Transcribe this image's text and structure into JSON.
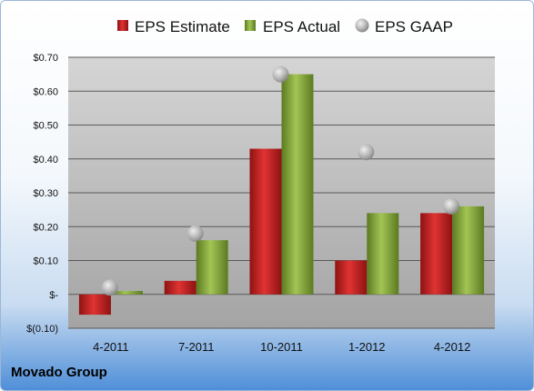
{
  "company": "Movado Group",
  "colors": {
    "estimate": "#d42525",
    "actual": "#8eb23e",
    "gaap": "#a8a8a8"
  },
  "chart_data": {
    "type": "bar",
    "categories": [
      "4-2011",
      "7-2011",
      "10-2011",
      "1-2012",
      "4-2012"
    ],
    "series": [
      {
        "name": "EPS Estimate",
        "kind": "bar",
        "values": [
          -0.06,
          0.04,
          0.43,
          0.1,
          0.24
        ]
      },
      {
        "name": "EPS Actual",
        "kind": "bar",
        "values": [
          0.01,
          0.16,
          0.65,
          0.24,
          0.26
        ]
      },
      {
        "name": "EPS GAAP",
        "kind": "marker",
        "values": [
          0.02,
          0.18,
          0.65,
          0.42,
          0.26
        ]
      }
    ],
    "yticks": [
      -0.1,
      0,
      0.1,
      0.2,
      0.3,
      0.4,
      0.5,
      0.6,
      0.7
    ],
    "ytick_labels": [
      "$(0.10)",
      "$-",
      "$0.10",
      "$0.20",
      "$0.30",
      "$0.40",
      "$0.50",
      "$0.60",
      "$0.70"
    ],
    "ylim": [
      -0.1,
      0.7
    ],
    "grid": true,
    "legend": "top"
  }
}
